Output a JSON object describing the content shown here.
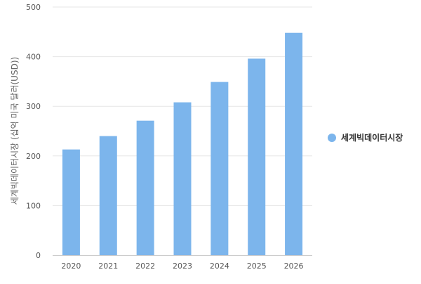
{
  "chart_data": {
    "type": "bar",
    "categories": [
      "2020",
      "2021",
      "2022",
      "2023",
      "2024",
      "2025",
      "2026"
    ],
    "series": [
      {
        "name": "세계빅데이터시장",
        "values": [
          213,
          240,
          271,
          308,
          349,
          396,
          448
        ]
      }
    ],
    "title": "",
    "xlabel": "",
    "ylabel": "세계빅데이터시장 (십억 미국 달러(USD))",
    "ylim": [
      0,
      500
    ],
    "yticks": [
      0,
      100,
      200,
      300,
      400,
      500
    ],
    "grid": true,
    "legend": "right",
    "colors": {
      "bar": "#7cb5ec",
      "grid": "#e6e6e6",
      "axis": "#cccccc"
    }
  }
}
